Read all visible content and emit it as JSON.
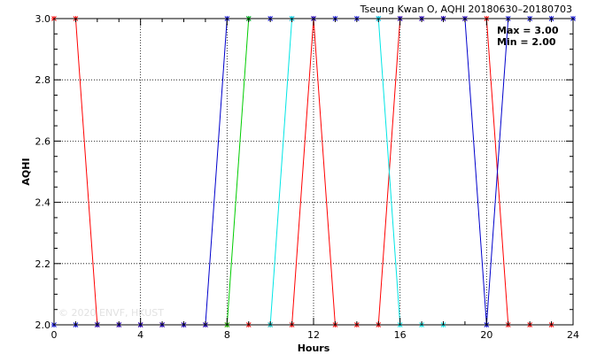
{
  "chart_data": {
    "type": "line",
    "title": "Tseung Kwan O, AQHI 20180630–20180703",
    "xlabel": "Hours",
    "ylabel": "AQHI",
    "xlim": [
      0,
      24
    ],
    "ylim": [
      2.0,
      3.0
    ],
    "xticks": [
      0,
      4,
      8,
      12,
      16,
      20,
      24
    ],
    "yticks": [
      2.0,
      2.2,
      2.4,
      2.6,
      2.8,
      3.0
    ],
    "xtick_labels": [
      "0",
      "4",
      "8",
      "12",
      "16",
      "20",
      "24"
    ],
    "ytick_labels": [
      "2.0",
      "2.2",
      "2.4",
      "2.6",
      "2.8",
      "3.0"
    ],
    "grid": true,
    "stats": {
      "max": "Max = 3.00",
      "min": "Min = 2.00"
    },
    "watermark": "© 2020 ENVF, HKUST",
    "series": [
      {
        "color": "#ff0000",
        "x": [
          0,
          1,
          2,
          3,
          4,
          5,
          6,
          7,
          8,
          9,
          10,
          11,
          12,
          13,
          14,
          15,
          16,
          17,
          18,
          19,
          20,
          21,
          22,
          23
        ],
        "y": [
          3,
          3,
          2,
          2,
          2,
          2,
          2,
          2,
          2,
          2,
          2,
          2,
          3,
          2,
          2,
          2,
          3,
          3,
          3,
          3,
          3,
          2,
          2,
          2
        ]
      },
      {
        "color": "#0000cc",
        "x": [
          0,
          1,
          2,
          3,
          4,
          5,
          6,
          7,
          8,
          9,
          10,
          11,
          12,
          13,
          14,
          15,
          16,
          17,
          18,
          19,
          20,
          21,
          22,
          23,
          24
        ],
        "y": [
          2,
          2,
          2,
          2,
          2,
          2,
          2,
          2,
          3,
          3,
          3,
          3,
          3,
          3,
          3,
          3,
          3,
          3,
          3,
          3,
          2,
          3,
          3,
          3,
          3
        ]
      },
      {
        "color": "#00cc00",
        "x": [
          8,
          9
        ],
        "y": [
          2,
          3
        ]
      },
      {
        "color": "#00e5e5",
        "x": [
          10,
          11,
          15,
          16,
          17,
          18
        ],
        "y": [
          2,
          3,
          3,
          2,
          2,
          2
        ]
      }
    ]
  }
}
